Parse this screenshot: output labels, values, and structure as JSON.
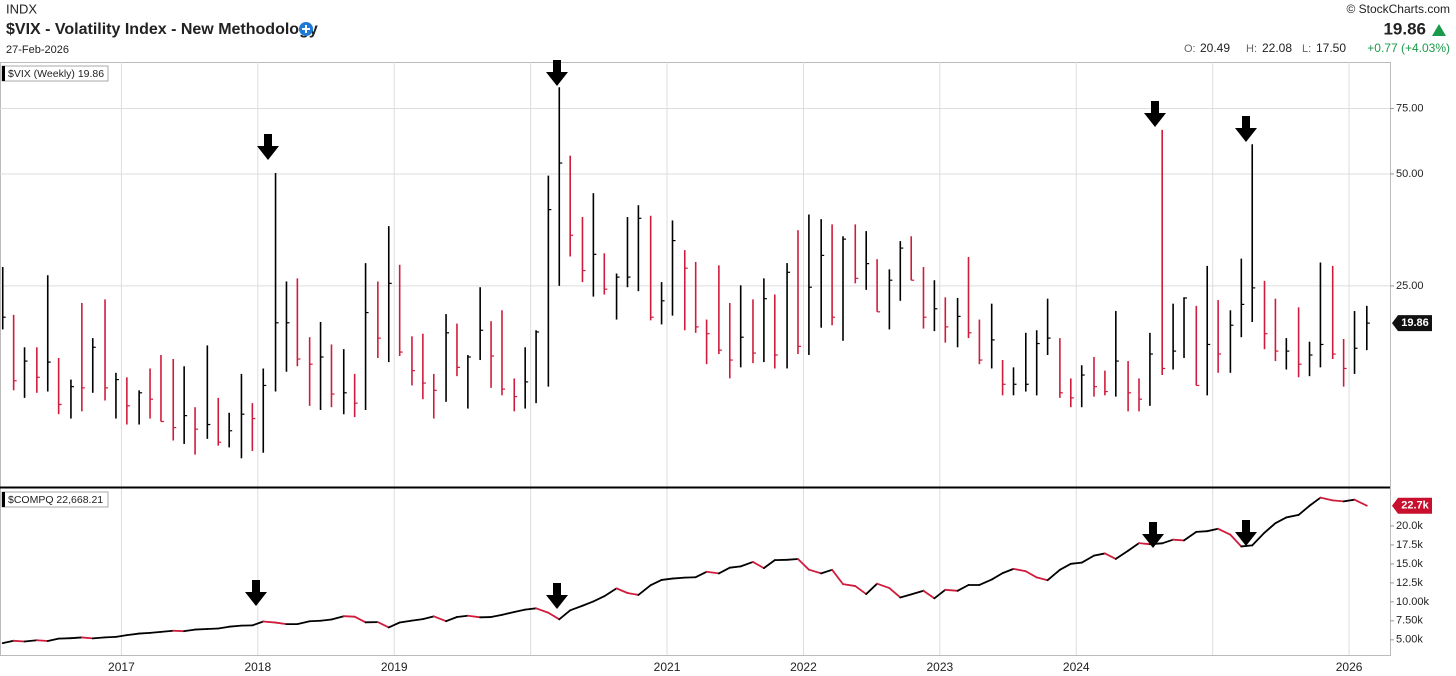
{
  "header": {
    "exchange": "INDX",
    "title": "$VIX - Volatility Index - New Methodology",
    "date": "27-Feb-2026",
    "copyright": "© StockCharts.com",
    "last": "19.86",
    "ohlc": [
      {
        "label": "O:",
        "value": "20.49"
      },
      {
        "label": "H:",
        "value": "22.08"
      },
      {
        "label": "L:",
        "value": "17.50"
      }
    ],
    "change": "+0.77 (+4.03%)"
  },
  "chart_data": [
    {
      "type": "ohlc",
      "legend_label": "$VIX (Weekly) 19.86",
      "tag": "19.86",
      "log_scale": true,
      "grid": true,
      "up_color": "#000000",
      "down_color": "#d01c3c",
      "xlim": [
        2016.11,
        2026.3
      ],
      "ylim": [
        7.2,
        100
      ],
      "yticks": [
        {
          "value": 25,
          "label": "25.00"
        },
        {
          "value": 50,
          "label": "50.00"
        },
        {
          "value": 75,
          "label": "75.00"
        }
      ],
      "x": [
        2016.13,
        2016.21,
        2016.29,
        2016.38,
        2016.46,
        2016.54,
        2016.63,
        2016.71,
        2016.79,
        2016.88,
        2016.96,
        2017.04,
        2017.13,
        2017.21,
        2017.29,
        2017.38,
        2017.46,
        2017.54,
        2017.63,
        2017.71,
        2017.79,
        2017.88,
        2017.96,
        2018.04,
        2018.13,
        2018.21,
        2018.29,
        2018.38,
        2018.46,
        2018.54,
        2018.63,
        2018.71,
        2018.79,
        2018.88,
        2018.96,
        2019.04,
        2019.13,
        2019.21,
        2019.29,
        2019.38,
        2019.46,
        2019.54,
        2019.63,
        2019.71,
        2019.79,
        2019.88,
        2019.96,
        2020.04,
        2020.13,
        2020.21,
        2020.29,
        2020.38,
        2020.46,
        2020.54,
        2020.63,
        2020.71,
        2020.79,
        2020.88,
        2020.96,
        2021.04,
        2021.13,
        2021.21,
        2021.29,
        2021.38,
        2021.46,
        2021.54,
        2021.63,
        2021.71,
        2021.79,
        2021.88,
        2021.96,
        2022.04,
        2022.13,
        2022.21,
        2022.29,
        2022.38,
        2022.46,
        2022.54,
        2022.63,
        2022.71,
        2022.79,
        2022.88,
        2022.96,
        2023.04,
        2023.13,
        2023.21,
        2023.29,
        2023.38,
        2023.46,
        2023.54,
        2023.63,
        2023.71,
        2023.79,
        2023.88,
        2023.96,
        2024.04,
        2024.13,
        2024.21,
        2024.29,
        2024.38,
        2024.46,
        2024.54,
        2024.63,
        2024.71,
        2024.79,
        2024.88,
        2024.96,
        2025.04,
        2025.13,
        2025.21,
        2025.29,
        2025.38,
        2025.46,
        2025.54,
        2025.63,
        2025.71,
        2025.79,
        2025.88,
        2025.96,
        2026.04,
        2026.13
      ],
      "high": [
        28.1,
        20.9,
        17.1,
        17.1,
        26.7,
        16.0,
        14.0,
        22.5,
        18.1,
        23.0,
        14.6,
        14.2,
        13.1,
        15.0,
        16.3,
        15.9,
        15.2,
        11.8,
        17.3,
        12.5,
        11.4,
        14.5,
        12.1,
        15.0,
        50.3,
        25.7,
        26.2,
        18.2,
        20.0,
        17.4,
        16.9,
        14.5,
        28.8,
        25.7,
        36.2,
        28.5,
        18.3,
        18.6,
        14.5,
        21.0,
        19.8,
        16.3,
        24.8,
        20.1,
        21.5,
        14.1,
        17.1,
        19.0,
        49.5,
        85.5,
        56.0,
        38.3,
        44.4,
        30.6,
        27.0,
        38.3,
        41.2,
        38.6,
        25.6,
        37.5,
        31.2,
        29.0,
        20.3,
        28.4,
        22.5,
        25.1,
        23.0,
        26.2,
        23.7,
        28.8,
        35.3,
        38.9,
        37.8,
        36.6,
        34.0,
        36.6,
        35.1,
        29.5,
        27.7,
        33.0,
        34.0,
        28.1,
        25.9,
        23.3,
        23.2,
        29.9,
        20.3,
        22.4,
        15.8,
        15.1,
        18.7,
        19.0,
        23.1,
        18.1,
        14.1,
        15.3,
        16.1,
        14.8,
        21.4,
        15.7,
        14.1,
        18.7,
        65.7,
        22.4,
        23.3,
        22.1,
        28.3,
        22.9,
        21.5,
        29.6,
        60.1,
        25.8,
        23.1,
        18.1,
        21.9,
        17.7,
        28.9,
        28.3,
        18.0,
        21.4,
        22.1
      ],
      "low": [
        19.1,
        13.1,
        12.5,
        12.9,
        13.0,
        11.3,
        11.0,
        11.5,
        12.9,
        12.3,
        11.0,
        10.6,
        10.6,
        11.0,
        10.8,
        9.6,
        9.4,
        8.8,
        9.7,
        9.3,
        9.2,
        8.6,
        9.0,
        8.9,
        13.0,
        14.7,
        15.2,
        11.9,
        11.6,
        11.8,
        11.3,
        11.1,
        11.6,
        16.0,
        15.6,
        16.2,
        13.5,
        12.4,
        11.0,
        12.2,
        14.3,
        11.7,
        15.8,
        13.3,
        12.7,
        11.5,
        11.7,
        12.1,
        13.4,
        25.0,
        30.0,
        25.6,
        23.4,
        23.7,
        20.3,
        24.8,
        24.2,
        20.2,
        19.7,
        20.8,
        19.0,
        18.7,
        15.4,
        16.4,
        14.1,
        15.1,
        15.5,
        15.6,
        15.0,
        15.0,
        16.4,
        16.3,
        19.3,
        19.6,
        17.8,
        25.4,
        24.4,
        21.3,
        19.1,
        22.8,
        25.9,
        19.2,
        18.9,
        17.6,
        17.1,
        18.1,
        15.4,
        15.0,
        12.7,
        12.7,
        13.0,
        12.7,
        16.3,
        12.5,
        11.8,
        11.8,
        12.6,
        12.7,
        12.6,
        11.5,
        11.5,
        11.9,
        14.4,
        14.9,
        16.0,
        13.5,
        12.7,
        14.6,
        14.6,
        18.2,
        20.0,
        16.9,
        15.7,
        14.9,
        14.2,
        14.3,
        15.1,
        15.9,
        13.4,
        14.5,
        16.8
      ],
      "close": [
        20.6,
        13.9,
        15.7,
        14.2,
        15.6,
        12.0,
        13.4,
        13.3,
        17.1,
        13.3,
        14.0,
        11.9,
        12.9,
        12.4,
        10.8,
        10.4,
        11.2,
        10.3,
        10.6,
        9.5,
        10.2,
        11.3,
        11.0,
        13.5,
        19.9,
        19.9,
        15.9,
        15.4,
        16.1,
        12.8,
        12.9,
        12.1,
        21.2,
        18.1,
        25.4,
        16.6,
        14.8,
        13.7,
        13.1,
        18.7,
        15.1,
        16.1,
        19.0,
        16.2,
        13.2,
        12.6,
        13.8,
        18.8,
        40.1,
        53.5,
        34.2,
        27.5,
        30.4,
        24.5,
        26.4,
        26.4,
        38.0,
        20.6,
        22.8,
        33.1,
        27.9,
        19.4,
        18.6,
        16.8,
        15.8,
        18.2,
        16.5,
        23.1,
        16.3,
        27.2,
        17.2,
        24.8,
        30.2,
        20.6,
        33.4,
        26.2,
        28.7,
        21.3,
        25.9,
        31.6,
        25.9,
        20.6,
        21.7,
        19.4,
        20.7,
        18.7,
        15.8,
        17.9,
        13.6,
        13.6,
        13.6,
        17.5,
        18.1,
        12.9,
        12.5,
        14.4,
        13.4,
        13.0,
        15.7,
        12.9,
        12.4,
        16.4,
        15.0,
        16.7,
        23.2,
        13.5,
        17.4,
        16.4,
        19.6,
        22.3,
        24.7,
        18.6,
        16.7,
        16.7,
        15.4,
        16.3,
        17.4,
        16.4,
        15.0,
        17.0,
        19.86
      ]
    },
    {
      "type": "line",
      "legend_label": "$COMPQ 22,668.21",
      "tag": "22.7k",
      "log_scale": false,
      "grid": false,
      "up_color": "#000000",
      "down_color": "#d01c3c",
      "xlim": [
        2016.11,
        2026.3
      ],
      "ylim": [
        3000,
        25000
      ],
      "yticks": [
        {
          "value": 5000,
          "label": "5.00k"
        },
        {
          "value": 7500,
          "label": "7.50k"
        },
        {
          "value": 10000,
          "label": "10.00k"
        },
        {
          "value": 12500,
          "label": "12.5k"
        },
        {
          "value": 15000,
          "label": "15.0k"
        },
        {
          "value": 17500,
          "label": "17.5k"
        },
        {
          "value": 20000,
          "label": "20.0k"
        }
      ],
      "xticks": [
        2017,
        2018,
        2019,
        {
          "value": 2020,
          "label": null
        },
        2021,
        2022,
        2023,
        2024,
        {
          "value": 2025,
          "label": null
        },
        2026
      ],
      "x": [
        2016.13,
        2016.21,
        2016.29,
        2016.38,
        2016.46,
        2016.54,
        2016.63,
        2016.71,
        2016.79,
        2016.88,
        2016.96,
        2017.04,
        2017.13,
        2017.21,
        2017.29,
        2017.38,
        2017.46,
        2017.54,
        2017.63,
        2017.71,
        2017.79,
        2017.88,
        2017.96,
        2018.04,
        2018.13,
        2018.21,
        2018.29,
        2018.38,
        2018.46,
        2018.54,
        2018.63,
        2018.71,
        2018.79,
        2018.88,
        2018.96,
        2019.04,
        2019.13,
        2019.21,
        2019.29,
        2019.38,
        2019.46,
        2019.54,
        2019.63,
        2019.71,
        2019.79,
        2019.88,
        2019.96,
        2020.04,
        2020.13,
        2020.21,
        2020.29,
        2020.38,
        2020.46,
        2020.54,
        2020.63,
        2020.71,
        2020.79,
        2020.88,
        2020.96,
        2021.04,
        2021.13,
        2021.21,
        2021.29,
        2021.38,
        2021.46,
        2021.54,
        2021.63,
        2021.71,
        2021.79,
        2021.88,
        2021.96,
        2022.04,
        2022.13,
        2022.21,
        2022.29,
        2022.38,
        2022.46,
        2022.54,
        2022.63,
        2022.71,
        2022.79,
        2022.88,
        2022.96,
        2023.04,
        2023.13,
        2023.21,
        2023.29,
        2023.38,
        2023.46,
        2023.54,
        2023.63,
        2023.71,
        2023.79,
        2023.88,
        2023.96,
        2024.04,
        2024.13,
        2024.21,
        2024.29,
        2024.38,
        2024.46,
        2024.54,
        2024.63,
        2024.71,
        2024.79,
        2024.88,
        2024.96,
        2025.04,
        2025.13,
        2025.21,
        2025.29,
        2025.38,
        2025.46,
        2025.54,
        2025.63,
        2025.71,
        2025.79,
        2025.88,
        2025.96,
        2026.04,
        2026.13
      ],
      "values": [
        4558,
        4870,
        4775,
        4948,
        4843,
        5162,
        5213,
        5312,
        5189,
        5324,
        5383,
        5615,
        5825,
        5912,
        6048,
        6199,
        6140,
        6348,
        6429,
        6496,
        6728,
        6874,
        6903,
        7411,
        7273,
        7063,
        7066,
        7442,
        7510,
        7672,
        8110,
        8046,
        7306,
        7331,
        6635,
        7282,
        7533,
        7729,
        8095,
        7453,
        8006,
        8175,
        7963,
        7999,
        8292,
        8665,
        8973,
        9151,
        8567,
        7700,
        8890,
        9490,
        10059,
        10745,
        11775,
        11168,
        10912,
        12199,
        12888,
        13070,
        13192,
        13247,
        13962,
        13749,
        14504,
        14673,
        15259,
        14448,
        15498,
        15538,
        15645,
        14240,
        13751,
        14221,
        12335,
        12081,
        11029,
        12391,
        11816,
        10576,
        10988,
        11468,
        10466,
        11585,
        11456,
        12222,
        12226,
        12935,
        13788,
        14346,
        14035,
        13219,
        12851,
        14226,
        15011,
        15164,
        16092,
        16379,
        15658,
        16735,
        17733,
        17599,
        17714,
        18189,
        18095,
        19218,
        19311,
        19627,
        18847,
        17299,
        17446,
        19114,
        20370,
        21122,
        21456,
        22660,
        23725,
        23366,
        23242,
        23462,
        22668.21
      ]
    }
  ]
}
